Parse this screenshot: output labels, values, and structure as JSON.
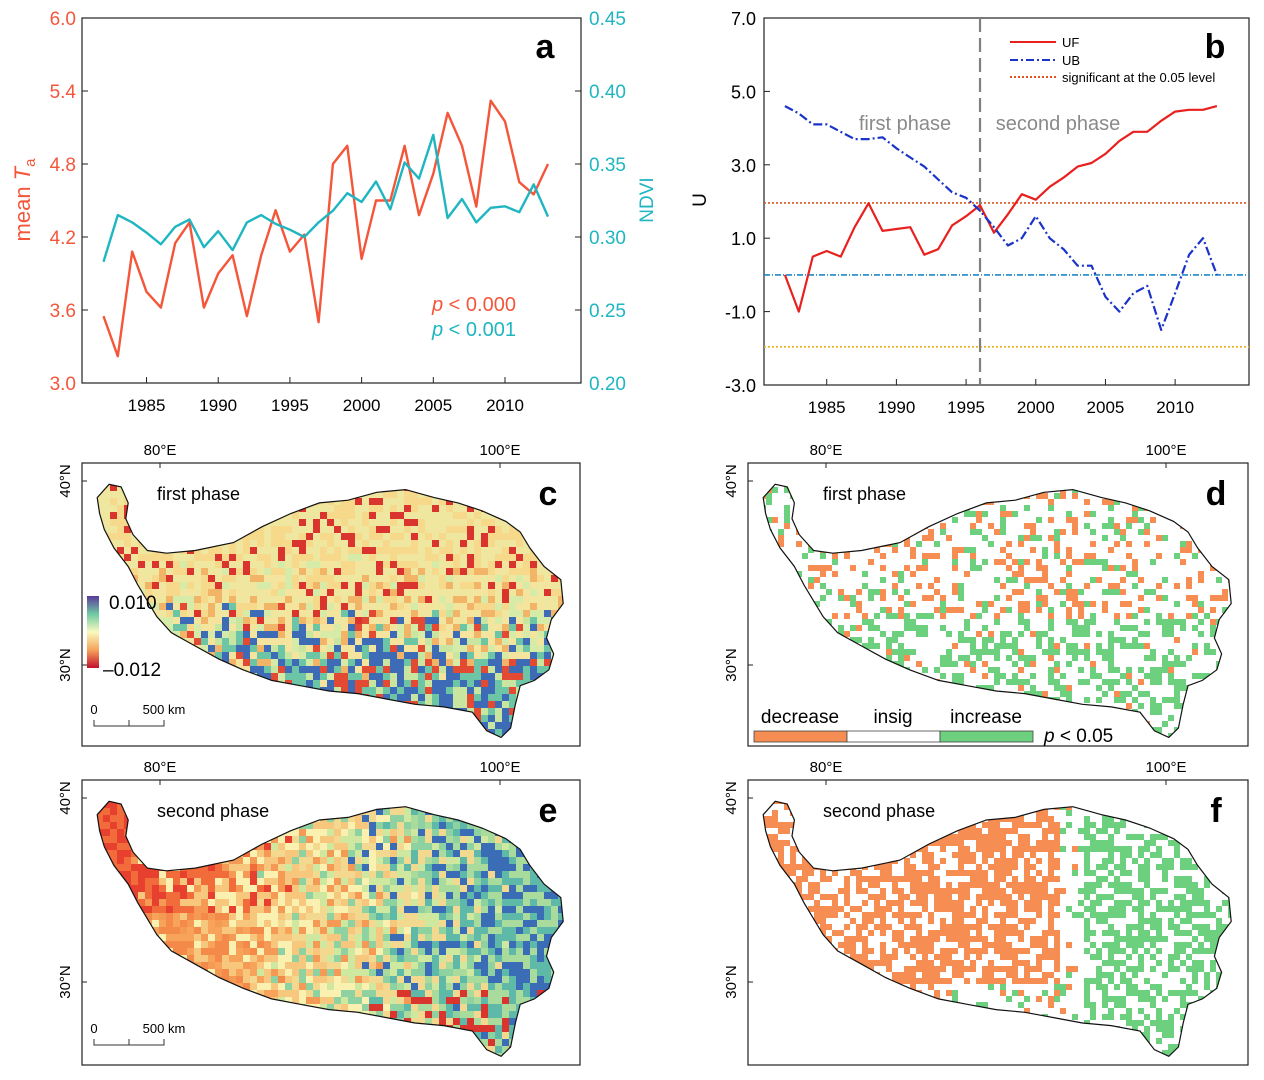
{
  "chart_data": [
    {
      "panel": "a",
      "type": "line",
      "x": [
        1982,
        1983,
        1984,
        1985,
        1986,
        1987,
        1988,
        1989,
        1990,
        1991,
        1992,
        1993,
        1994,
        1995,
        1996,
        1997,
        1998,
        1999,
        2000,
        2001,
        2002,
        2003,
        2004,
        2005,
        2006,
        2007,
        2008,
        2009,
        2010,
        2011,
        2012,
        2013
      ],
      "series": [
        {
          "name": "mean Ta",
          "axis": "left",
          "color": "#f4563a",
          "values": [
            3.55,
            3.22,
            4.08,
            3.75,
            3.62,
            4.15,
            4.32,
            3.62,
            3.9,
            4.05,
            3.55,
            4.05,
            4.42,
            4.08,
            4.22,
            3.5,
            4.8,
            4.95,
            4.02,
            4.5,
            4.5,
            4.95,
            4.38,
            4.72,
            5.22,
            4.95,
            4.45,
            5.32,
            5.15,
            4.65,
            4.55,
            4.8
          ]
        },
        {
          "name": "NDVI",
          "axis": "right",
          "color": "#1fb6c1",
          "values": [
            0.283,
            0.315,
            0.31,
            0.303,
            0.295,
            0.307,
            0.312,
            0.293,
            0.304,
            0.291,
            0.31,
            0.315,
            0.309,
            0.305,
            0.3,
            0.31,
            0.318,
            0.33,
            0.324,
            0.338,
            0.319,
            0.351,
            0.34,
            0.37,
            0.313,
            0.326,
            0.31,
            0.32,
            0.321,
            0.317,
            0.336,
            0.314
          ]
        }
      ],
      "yleft": {
        "label": "mean ",
        "label_italic": "T",
        "label_sub": "a",
        "range": [
          3.0,
          6.0
        ],
        "ticks": [
          "3.0",
          "3.6",
          "4.2",
          "4.8",
          "5.4",
          "6.0"
        ]
      },
      "yright": {
        "label": "NDVI",
        "range": [
          0.2,
          0.45
        ],
        "ticks": [
          "0.20",
          "0.25",
          "0.30",
          "0.35",
          "0.40",
          "0.45"
        ]
      },
      "xticks": [
        "1985",
        "1990",
        "1995",
        "2000",
        "2005",
        "2010"
      ],
      "annotations": [
        {
          "italic": "p",
          "rest": " < 0.000"
        },
        {
          "italic": "p",
          "rest": " < 0.001"
        }
      ],
      "letter": "a"
    },
    {
      "panel": "b",
      "type": "line",
      "x": [
        1982,
        1983,
        1984,
        1985,
        1986,
        1987,
        1988,
        1989,
        1990,
        1991,
        1992,
        1993,
        1994,
        1995,
        1996,
        1997,
        1998,
        1999,
        2000,
        2001,
        2002,
        2003,
        2004,
        2005,
        2006,
        2007,
        2008,
        2009,
        2010,
        2011,
        2012,
        2013
      ],
      "series": [
        {
          "name": "UF",
          "style": "solid",
          "color": "#e8211f",
          "values": [
            0.0,
            -1.0,
            0.5,
            0.65,
            0.5,
            1.3,
            1.95,
            1.2,
            1.25,
            1.3,
            0.55,
            0.7,
            1.35,
            1.6,
            1.9,
            1.15,
            1.65,
            2.2,
            2.05,
            2.4,
            2.65,
            2.95,
            3.05,
            3.3,
            3.65,
            3.9,
            3.9,
            4.2,
            4.45,
            4.5,
            4.5,
            4.6
          ]
        },
        {
          "name": "UB",
          "style": "dash-dot",
          "color": "#1a33c8",
          "values": [
            4.6,
            4.4,
            4.1,
            4.1,
            3.9,
            3.7,
            3.7,
            3.75,
            3.45,
            3.2,
            2.95,
            2.6,
            2.25,
            2.1,
            1.75,
            1.3,
            0.8,
            1.0,
            1.6,
            1.0,
            0.7,
            0.25,
            0.25,
            -0.6,
            -1.0,
            -0.5,
            -0.3,
            -1.5,
            -0.5,
            0.55,
            1.0,
            0.0
          ]
        }
      ],
      "reference_lines": [
        {
          "y": 1.96,
          "color": "#e0531f",
          "legend": "significant at the 0.05 level"
        },
        {
          "y": 0.0,
          "color": "#1e88c8"
        },
        {
          "y": -1.96,
          "color": "#e8b21a"
        }
      ],
      "change_year": 1996,
      "ylabel": "U",
      "ylim": [
        -3.0,
        7.0
      ],
      "yticks": [
        "-3.0",
        "-1.0",
        "1.0",
        "3.0",
        "5.0",
        "7.0"
      ],
      "xticks": [
        "1985",
        "1990",
        "1995",
        "2000",
        "2005",
        "2010"
      ],
      "phase_labels": [
        "first phase",
        "second phase"
      ],
      "letter": "b"
    }
  ],
  "maps": [
    {
      "letter": "c",
      "phase": "first phase",
      "kind": "trend",
      "colorbar": {
        "max": "0.010",
        "min": "–0.012"
      },
      "scale_bar": {
        "zero": "0",
        "dist": "500 km"
      },
      "lon_labels": [
        "80°E",
        "100°E"
      ],
      "lat_labels": [
        "40°N",
        "30°N"
      ]
    },
    {
      "letter": "d",
      "phase": "first phase",
      "kind": "significance",
      "legend": [
        "decrease",
        "insig",
        "increase"
      ],
      "legend_colors": [
        "#f68d52",
        "#ffffff",
        "#6dd07e"
      ],
      "pnote": {
        "italic": "p",
        "rest": " < 0.05"
      },
      "lon_labels": [
        "80°E",
        "100°E"
      ],
      "lat_labels": [
        "40°N",
        "30°N"
      ]
    },
    {
      "letter": "e",
      "phase": "second phase",
      "kind": "trend",
      "scale_bar": {
        "zero": "0",
        "dist": "500 km"
      },
      "lon_labels": [
        "80°E",
        "100°E"
      ],
      "lat_labels": [
        "40°N",
        "30°N"
      ]
    },
    {
      "letter": "f",
      "phase": "second phase",
      "kind": "significance",
      "lon_labels": [
        "80°E",
        "100°E"
      ],
      "lat_labels": [
        "40°N",
        "30°N"
      ]
    }
  ]
}
